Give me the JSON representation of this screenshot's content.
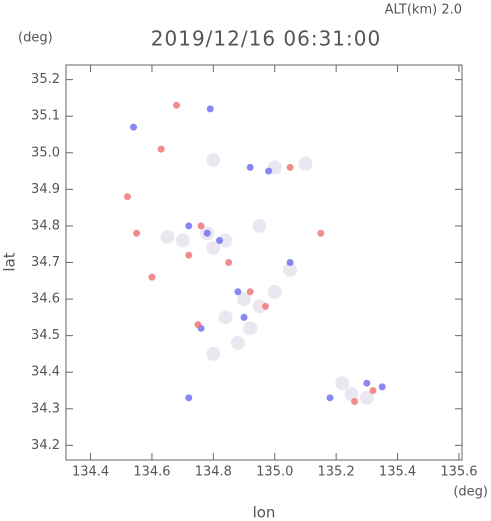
{
  "chart_data": {
    "type": "scatter",
    "title": "2019/12/16 06:31:00",
    "annotation": "ALT(km) 2.0",
    "xlabel": "lon",
    "ylabel": "lat",
    "xunit": "(deg)",
    "yunit": "(deg)",
    "xlim": [
      134.32,
      135.61
    ],
    "ylim": [
      34.16,
      35.24
    ],
    "xticks": [
      134.4,
      134.6,
      134.8,
      {
        "value": 135,
        "label": "135.0"
      },
      135.2,
      135.4,
      135.6
    ],
    "yticks": [
      34.2,
      34.3,
      34.4,
      34.5,
      34.6,
      34.7,
      34.8,
      34.9,
      {
        "value": 35,
        "label": "35.0"
      },
      35.1,
      35.2
    ],
    "series": [
      {
        "color": "#e8e4f0",
        "x": [
          134.78,
          134.8,
          134.84,
          134.9,
          134.95,
          135.0,
          134.92,
          134.88,
          134.84,
          134.8,
          135.25,
          135.3,
          135.22,
          135.1,
          135.0,
          134.7,
          134.65,
          134.95,
          135.05,
          134.8
        ],
        "y": [
          34.78,
          34.74,
          34.76,
          34.6,
          34.58,
          34.62,
          34.52,
          34.48,
          34.55,
          34.45,
          34.34,
          34.33,
          34.37,
          34.97,
          34.96,
          34.76,
          34.77,
          34.8,
          34.68,
          34.98
        ]
      },
      {
        "color": "#6a6af0",
        "x": [
          134.54,
          134.79,
          134.92,
          134.78,
          134.82,
          134.72,
          135.3,
          134.88,
          135.05,
          134.76,
          135.18,
          134.9,
          134.72,
          135.35,
          134.98
        ],
        "y": [
          35.07,
          35.12,
          34.96,
          34.78,
          34.76,
          34.33,
          34.37,
          34.62,
          34.7,
          34.52,
          34.33,
          34.55,
          34.8,
          34.36,
          34.95
        ]
      },
      {
        "color": "#f07070",
        "x": [
          134.63,
          134.52,
          134.6,
          134.75,
          134.97,
          135.05,
          134.76,
          135.26,
          135.15,
          134.85,
          134.55,
          134.68,
          135.32,
          134.92,
          134.72
        ],
        "y": [
          35.01,
          34.88,
          34.66,
          34.53,
          34.58,
          34.96,
          34.8,
          34.32,
          34.78,
          34.7,
          34.78,
          35.13,
          34.35,
          34.62,
          34.72
        ]
      }
    ]
  }
}
